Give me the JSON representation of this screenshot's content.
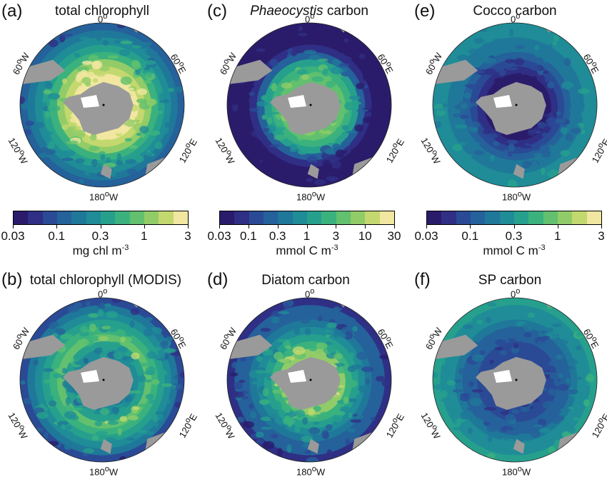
{
  "panels": [
    {
      "letter": "(a)",
      "title": "total chlorophyll",
      "style": "chl"
    },
    {
      "letter": "(c)",
      "title_italic": "Phaeocystis",
      "title": " carbon",
      "style": "phaeo"
    },
    {
      "letter": "(e)",
      "title": "Cocco carbon",
      "style": "cocco"
    },
    {
      "letter": "(b)",
      "title": "total chlorophyll (MODIS)",
      "style": "modis"
    },
    {
      "letter": "(d)",
      "title": "Diatom carbon",
      "style": "diatom"
    },
    {
      "letter": "(f)",
      "title": "SP carbon",
      "style": "sp"
    }
  ],
  "lon_labels": {
    "top": "0",
    "left": "60",
    "right": "60",
    "lowleft": "120",
    "lowright": "120",
    "bottom": "180"
  },
  "lon_suffix": {
    "left": "W",
    "right": "E",
    "lowleft": "W",
    "lowright": "E",
    "bottom": "W"
  },
  "degree": "o",
  "colorbars": [
    {
      "ticks": [
        "0.03",
        "0.1",
        "0.3",
        "1",
        "3"
      ],
      "unit": "mg chl m",
      "unit_exp": "-3"
    },
    {
      "ticks": [
        "0.03",
        "0.1",
        "0.3",
        "1",
        "3",
        "10",
        "30"
      ],
      "unit": "mmol C m",
      "unit_exp": "-3"
    },
    {
      "ticks": [
        "0.03",
        "0.1",
        "0.3",
        "1",
        "3"
      ],
      "unit": "mmol C m",
      "unit_exp": "-3"
    }
  ],
  "colormap": [
    "#2b1b6b",
    "#2f2f85",
    "#2b4a96",
    "#25619a",
    "#1f7899",
    "#1f8c97",
    "#26a08d",
    "#3bb27e",
    "#62c06e",
    "#92cc68",
    "#c3d86e",
    "#f1e7a0"
  ]
}
